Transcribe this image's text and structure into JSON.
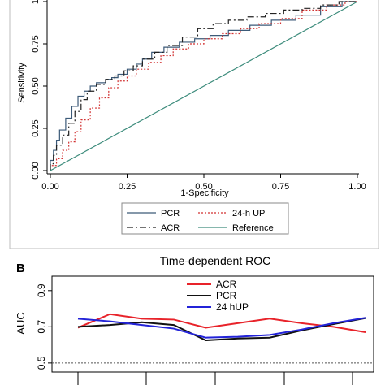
{
  "panel_b_label": "B",
  "chart_data": [
    {
      "type": "line",
      "title": "",
      "xlabel": "1-Specificity",
      "ylabel": "Sensitivity",
      "xlim": [
        0,
        1
      ],
      "ylim": [
        0,
        1
      ],
      "x_ticks": [
        "0.00",
        "0.25",
        "0.50",
        "0.75",
        "1.00"
      ],
      "y_ticks": [
        "0.00",
        "0.25",
        "0.50",
        "0.75",
        "1"
      ],
      "grid": false,
      "legend_position": "bottom",
      "series": [
        {
          "name": "PCR",
          "color": "#3c5a78",
          "dash": "solid",
          "x": [
            0,
            0.01,
            0.02,
            0.03,
            0.05,
            0.07,
            0.09,
            0.11,
            0.13,
            0.15,
            0.18,
            0.2,
            0.22,
            0.25,
            0.28,
            0.3,
            0.33,
            0.37,
            0.42,
            0.47,
            0.52,
            0.58,
            0.65,
            0.72,
            0.8,
            0.88,
            0.95,
            1.0
          ],
          "y": [
            0,
            0.06,
            0.12,
            0.18,
            0.24,
            0.31,
            0.38,
            0.44,
            0.47,
            0.5,
            0.52,
            0.54,
            0.55,
            0.57,
            0.6,
            0.63,
            0.66,
            0.7,
            0.73,
            0.76,
            0.78,
            0.8,
            0.83,
            0.86,
            0.89,
            0.92,
            0.97,
            1.0
          ]
        },
        {
          "name": "24-h UP",
          "color": "#d23232",
          "dash": "dotted",
          "x": [
            0,
            0.02,
            0.04,
            0.06,
            0.08,
            0.1,
            0.13,
            0.16,
            0.19,
            0.22,
            0.25,
            0.28,
            0.32,
            0.36,
            0.4,
            0.45,
            0.5,
            0.56,
            0.62,
            0.68,
            0.75,
            0.82,
            0.9,
            0.96,
            1.0
          ],
          "y": [
            0,
            0.03,
            0.07,
            0.12,
            0.17,
            0.23,
            0.3,
            0.37,
            0.43,
            0.49,
            0.53,
            0.56,
            0.6,
            0.64,
            0.68,
            0.72,
            0.75,
            0.78,
            0.81,
            0.84,
            0.87,
            0.9,
            0.95,
            0.98,
            1.0
          ]
        },
        {
          "name": "ACR",
          "color": "#222222",
          "dash": "dashdot",
          "x": [
            0,
            0.01,
            0.02,
            0.04,
            0.06,
            0.08,
            0.1,
            0.12,
            0.15,
            0.18,
            0.21,
            0.24,
            0.27,
            0.3,
            0.34,
            0.38,
            0.43,
            0.48,
            0.53,
            0.58,
            0.64,
            0.7,
            0.76,
            0.82,
            0.88,
            0.94,
            1.0
          ],
          "y": [
            0,
            0.04,
            0.09,
            0.15,
            0.21,
            0.28,
            0.35,
            0.42,
            0.47,
            0.51,
            0.54,
            0.56,
            0.59,
            0.62,
            0.66,
            0.7,
            0.74,
            0.79,
            0.84,
            0.87,
            0.89,
            0.91,
            0.93,
            0.95,
            0.96,
            0.98,
            1.0
          ]
        },
        {
          "name": "Reference",
          "color": "#3d8c7c",
          "dash": "solid",
          "x": [
            0,
            1.0
          ],
          "y": [
            0,
            1.0
          ]
        }
      ]
    },
    {
      "type": "line",
      "title": "Time-dependent ROC",
      "xlabel": "",
      "ylabel": "AUC",
      "x_ticks_visible": false,
      "ylim": [
        0.45,
        0.98
      ],
      "y_ticks": [
        "0.5",
        "0.7",
        "0.9"
      ],
      "reference_line": {
        "y": 0.5,
        "style": "dotted"
      },
      "grid": false,
      "legend_position": "top-center",
      "x": [
        1,
        2,
        3,
        4,
        5,
        6,
        7,
        8,
        9,
        10
      ],
      "series": [
        {
          "name": "ACR",
          "color": "#e8232a",
          "y": [
            0.695,
            0.77,
            0.745,
            0.74,
            0.695,
            0.72,
            0.745,
            0.72,
            0.7,
            0.67
          ]
        },
        {
          "name": "PCR",
          "color": "#111111",
          "y": [
            0.7,
            0.71,
            0.725,
            0.71,
            0.625,
            0.635,
            0.64,
            0.68,
            0.715,
            0.748
          ]
        },
        {
          "name": "24 hUP",
          "color": "#2323d8",
          "y": [
            0.745,
            0.73,
            0.71,
            0.69,
            0.64,
            0.645,
            0.655,
            0.685,
            0.72,
            0.75
          ]
        }
      ]
    }
  ]
}
